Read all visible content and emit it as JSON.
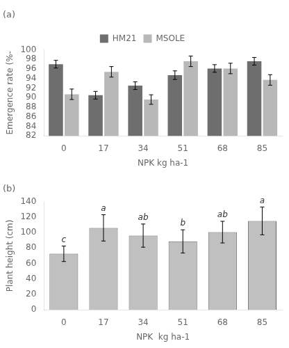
{
  "chart_data": [
    {
      "type": "bar",
      "title": "(a)",
      "categories": [
        0,
        17,
        34,
        51,
        68,
        85
      ],
      "series": [
        {
          "name": "HM21",
          "color": "#6e6e6e",
          "values": [
            97.0,
            90.5,
            92.5,
            94.7,
            96.1,
            97.6
          ],
          "errors": [
            0.8,
            0.8,
            0.8,
            0.9,
            0.8,
            0.8
          ]
        },
        {
          "name": "MSOLE",
          "color": "#b8b8b8",
          "values": [
            90.7,
            95.4,
            89.6,
            97.6,
            96.1,
            93.7
          ],
          "errors": [
            1.1,
            1.1,
            1.0,
            1.1,
            1.1,
            1.1
          ]
        }
      ],
      "ylabel": "Emergence rate (%-",
      "xlabel": "NPK kg ha-1",
      "ylim": [
        82,
        100
      ],
      "yticks": [
        82,
        84,
        86,
        88,
        90,
        92,
        94,
        96,
        98,
        100
      ],
      "grid": false,
      "legend": "top"
    },
    {
      "type": "bar",
      "title": "(b)",
      "categories": [
        0,
        17,
        34,
        51,
        68,
        85
      ],
      "values": [
        72.5,
        106.0,
        96.0,
        88.5,
        100.5,
        115.0
      ],
      "errors": [
        10.0,
        17.0,
        15.0,
        15.0,
        14.0,
        18.0
      ],
      "annotations": [
        "c",
        "a",
        "ab",
        "b",
        "ab",
        "a"
      ],
      "color": "#c0c0c0",
      "ylabel": "Plant height (cm)",
      "xlabel": "NPK  kg ha-1",
      "ylim": [
        0,
        140
      ],
      "yticks": [
        0,
        20,
        40,
        60,
        80,
        100,
        120,
        140
      ],
      "grid": false
    }
  ]
}
